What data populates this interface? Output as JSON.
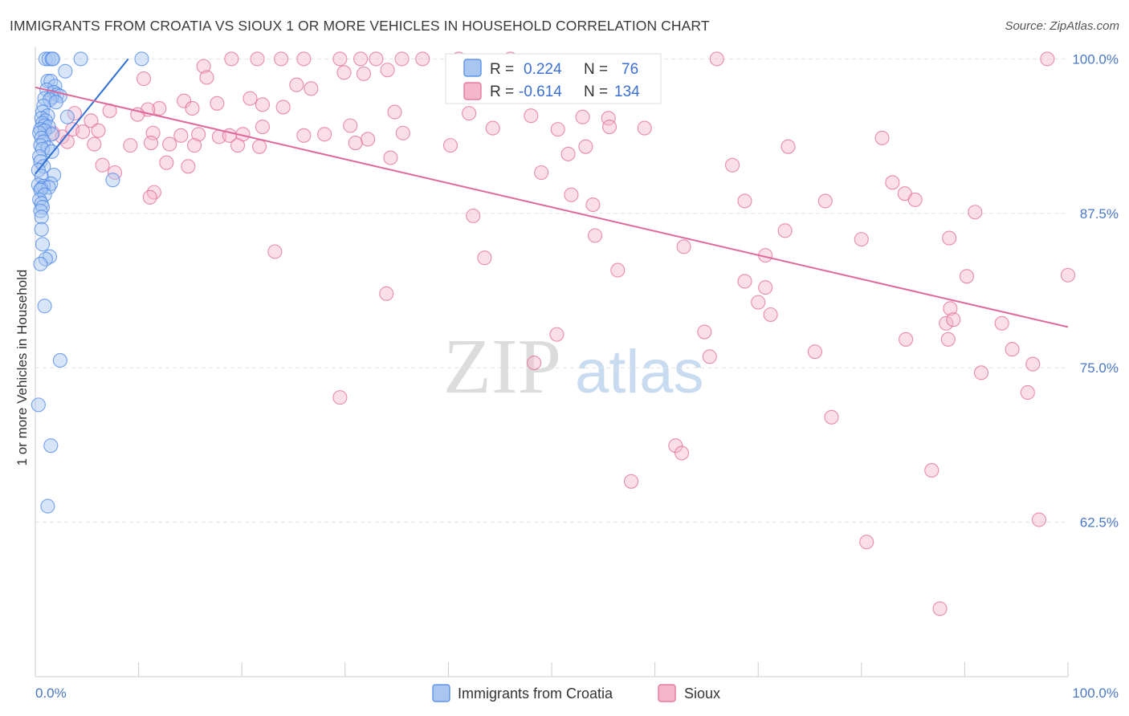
{
  "title": "IMMIGRANTS FROM CROATIA VS SIOUX 1 OR MORE VEHICLES IN HOUSEHOLD CORRELATION CHART",
  "source": "Source: ZipAtlas.com",
  "watermark": {
    "zip": "ZIP",
    "atlas": "atlas"
  },
  "chart_data": {
    "type": "scatter",
    "ylabel": "1 or more Vehicles in Household",
    "xlabel_left": "0.0%",
    "xlabel_right": "100.0%",
    "xlim": [
      0,
      100
    ],
    "ylim": [
      50,
      101
    ],
    "y_ticks": [
      {
        "value": 100.0,
        "label": "100.0%"
      },
      {
        "value": 87.5,
        "label": "87.5%"
      },
      {
        "value": 75.0,
        "label": "75.0%"
      },
      {
        "value": 62.5,
        "label": "62.5%"
      }
    ],
    "series": [
      {
        "name": "Immigrants from Croatia",
        "color": "#4a86e8",
        "fill": "#a9c6f0",
        "R": "0.224",
        "N": "76",
        "trend": {
          "x1": 0.0,
          "y1": 90.7,
          "x2": 9.0,
          "y2": 100.0
        },
        "points": [
          [
            1.0,
            100
          ],
          [
            1.3,
            100
          ],
          [
            1.6,
            100
          ],
          [
            4.4,
            100
          ],
          [
            10.3,
            100
          ],
          [
            1.7,
            100
          ],
          [
            2.9,
            99.0
          ],
          [
            1.2,
            98.2
          ],
          [
            1.5,
            98.2
          ],
          [
            1.9,
            97.8
          ],
          [
            1.1,
            97.5
          ],
          [
            1.8,
            97.3
          ],
          [
            2.1,
            97.1
          ],
          [
            2.4,
            97.0
          ],
          [
            1.6,
            96.9
          ],
          [
            0.9,
            96.8
          ],
          [
            1.4,
            96.7
          ],
          [
            2.0,
            96.5
          ],
          [
            0.8,
            96.2
          ],
          [
            0.7,
            95.7
          ],
          [
            1.2,
            95.4
          ],
          [
            3.1,
            95.3
          ],
          [
            0.6,
            95.2
          ],
          [
            1.0,
            95.0
          ],
          [
            0.7,
            94.8
          ],
          [
            0.9,
            94.6
          ],
          [
            1.3,
            94.5
          ],
          [
            0.5,
            94.3
          ],
          [
            0.9,
            94.2
          ],
          [
            0.4,
            94.0
          ],
          [
            1.6,
            93.9
          ],
          [
            0.6,
            93.6
          ],
          [
            0.8,
            93.3
          ],
          [
            0.5,
            93.0
          ],
          [
            1.2,
            92.8
          ],
          [
            0.7,
            92.7
          ],
          [
            1.6,
            92.5
          ],
          [
            0.4,
            92.1
          ],
          [
            0.5,
            91.7
          ],
          [
            0.8,
            91.3
          ],
          [
            0.3,
            91.0
          ],
          [
            1.8,
            90.6
          ],
          [
            0.6,
            90.5
          ],
          [
            7.5,
            90.2
          ],
          [
            1.5,
            89.9
          ],
          [
            0.3,
            89.8
          ],
          [
            0.8,
            89.7
          ],
          [
            0.6,
            89.5
          ],
          [
            1.3,
            89.6
          ],
          [
            0.5,
            89.4
          ],
          [
            0.9,
            89.0
          ],
          [
            0.4,
            88.6
          ],
          [
            0.6,
            88.3
          ],
          [
            0.7,
            88.0
          ],
          [
            0.5,
            87.7
          ],
          [
            0.6,
            87.2
          ],
          [
            0.6,
            86.2
          ],
          [
            0.7,
            85.0
          ],
          [
            1.4,
            84.0
          ],
          [
            1.0,
            83.8
          ],
          [
            0.5,
            83.4
          ],
          [
            0.9,
            80.0
          ],
          [
            2.4,
            75.6
          ],
          [
            0.3,
            72.0
          ],
          [
            1.5,
            68.7
          ],
          [
            1.2,
            63.8
          ]
        ]
      },
      {
        "name": "Sioux",
        "color": "#e06a94",
        "fill": "#f4b6cb",
        "R": "-0.614",
        "N": "134",
        "trend": {
          "x1": 0.0,
          "y1": 97.7,
          "x2": 100.0,
          "y2": 78.3
        },
        "points": [
          [
            16.3,
            99.4
          ],
          [
            19.0,
            100
          ],
          [
            21.5,
            100
          ],
          [
            23.8,
            100
          ],
          [
            26.0,
            100
          ],
          [
            29.5,
            100
          ],
          [
            31.5,
            100
          ],
          [
            33.0,
            100
          ],
          [
            35.5,
            100
          ],
          [
            37.5,
            100
          ],
          [
            41.0,
            100
          ],
          [
            46.0,
            100
          ],
          [
            66.0,
            100
          ],
          [
            98.0,
            100
          ],
          [
            29.9,
            98.9
          ],
          [
            31.8,
            98.8
          ],
          [
            34.1,
            99.1
          ],
          [
            16.6,
            98.5
          ],
          [
            25.3,
            97.9
          ],
          [
            26.7,
            97.6
          ],
          [
            10.5,
            98.4
          ],
          [
            20.8,
            96.8
          ],
          [
            14.4,
            96.6
          ],
          [
            17.6,
            96.4
          ],
          [
            22.0,
            96.3
          ],
          [
            24.0,
            96.1
          ],
          [
            12.0,
            96.0
          ],
          [
            7.2,
            95.8
          ],
          [
            10.9,
            95.9
          ],
          [
            15.2,
            96.0
          ],
          [
            3.8,
            95.6
          ],
          [
            9.9,
            95.5
          ],
          [
            34.8,
            95.7
          ],
          [
            42.0,
            95.6
          ],
          [
            48.0,
            95.4
          ],
          [
            53.0,
            95.3
          ],
          [
            55.5,
            95.2
          ],
          [
            5.4,
            95.0
          ],
          [
            22.0,
            94.5
          ],
          [
            30.5,
            94.6
          ],
          [
            44.3,
            94.4
          ],
          [
            50.6,
            94.3
          ],
          [
            55.6,
            94.5
          ],
          [
            59.0,
            94.4
          ],
          [
            3.6,
            94.3
          ],
          [
            4.6,
            94.1
          ],
          [
            6.1,
            94.2
          ],
          [
            1.7,
            94.0
          ],
          [
            2.6,
            93.7
          ],
          [
            11.4,
            94.0
          ],
          [
            14.1,
            93.8
          ],
          [
            15.8,
            93.9
          ],
          [
            17.8,
            93.7
          ],
          [
            18.8,
            93.8
          ],
          [
            20.1,
            93.9
          ],
          [
            26.0,
            93.8
          ],
          [
            28.0,
            93.9
          ],
          [
            32.2,
            93.5
          ],
          [
            35.6,
            94.0
          ],
          [
            3.1,
            93.3
          ],
          [
            5.7,
            93.1
          ],
          [
            9.2,
            93.0
          ],
          [
            11.2,
            93.2
          ],
          [
            13.0,
            93.1
          ],
          [
            15.4,
            93.0
          ],
          [
            19.6,
            93.0
          ],
          [
            21.7,
            92.9
          ],
          [
            31.0,
            93.2
          ],
          [
            40.2,
            93.0
          ],
          [
            53.3,
            92.9
          ],
          [
            72.9,
            92.9
          ],
          [
            82.0,
            93.6
          ],
          [
            34.4,
            92.0
          ],
          [
            51.6,
            92.3
          ],
          [
            12.7,
            91.6
          ],
          [
            14.8,
            91.3
          ],
          [
            6.5,
            91.4
          ],
          [
            7.7,
            90.8
          ],
          [
            49.0,
            90.8
          ],
          [
            67.5,
            91.4
          ],
          [
            83.0,
            90.0
          ],
          [
            84.2,
            89.1
          ],
          [
            85.2,
            88.6
          ],
          [
            11.5,
            89.2
          ],
          [
            11.1,
            88.8
          ],
          [
            51.9,
            89.0
          ],
          [
            54.0,
            88.2
          ],
          [
            76.5,
            88.5
          ],
          [
            68.7,
            88.5
          ],
          [
            91.0,
            87.6
          ],
          [
            42.4,
            87.3
          ],
          [
            54.2,
            85.7
          ],
          [
            72.6,
            86.1
          ],
          [
            80.0,
            85.4
          ],
          [
            88.5,
            85.5
          ],
          [
            62.8,
            84.8
          ],
          [
            70.7,
            84.1
          ],
          [
            23.2,
            84.4
          ],
          [
            43.5,
            83.9
          ],
          [
            56.4,
            82.9
          ],
          [
            90.2,
            82.4
          ],
          [
            100.0,
            82.5
          ],
          [
            68.7,
            82.0
          ],
          [
            70.7,
            81.5
          ],
          [
            34.0,
            81.0
          ],
          [
            70.0,
            80.3
          ],
          [
            71.2,
            79.3
          ],
          [
            88.6,
            79.8
          ],
          [
            88.2,
            78.6
          ],
          [
            88.9,
            78.9
          ],
          [
            93.6,
            78.6
          ],
          [
            64.8,
            77.9
          ],
          [
            50.5,
            77.7
          ],
          [
            84.3,
            77.3
          ],
          [
            88.4,
            77.3
          ],
          [
            75.5,
            76.3
          ],
          [
            94.6,
            76.5
          ],
          [
            65.3,
            75.9
          ],
          [
            48.3,
            75.4
          ],
          [
            96.6,
            75.3
          ],
          [
            91.6,
            74.6
          ],
          [
            96.1,
            73.0
          ],
          [
            29.5,
            72.6
          ],
          [
            77.1,
            71.0
          ],
          [
            62.0,
            68.7
          ],
          [
            62.6,
            68.1
          ],
          [
            86.8,
            66.7
          ],
          [
            57.7,
            65.8
          ],
          [
            97.2,
            62.7
          ],
          [
            80.5,
            60.9
          ],
          [
            87.6,
            55.5
          ]
        ]
      }
    ]
  },
  "legend": {
    "r_label": "R =",
    "n_label": "N =",
    "bottom": [
      "Immigrants from Croatia",
      "Sioux"
    ]
  }
}
